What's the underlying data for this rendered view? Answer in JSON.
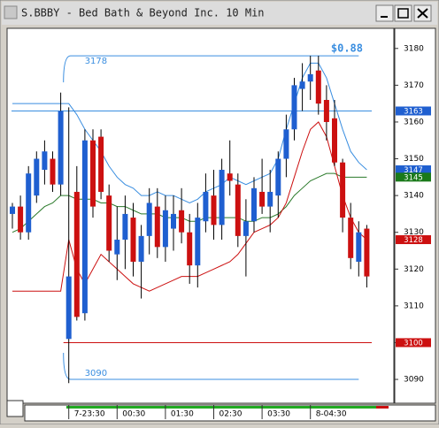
{
  "chart_data": {
    "type": "candlestick",
    "title": "S.BBBY - Bed Bath & Beyond Inc. 10 Min",
    "annotation": "$0.88",
    "categories": [
      null,
      null,
      null,
      null,
      null,
      null,
      null,
      "7-23:30",
      null,
      null,
      null,
      null,
      null,
      "00:30",
      null,
      null,
      null,
      null,
      null,
      "01:30",
      null,
      null,
      null,
      null,
      null,
      "02:30",
      null,
      null,
      null,
      null,
      null,
      "03:30",
      null,
      null,
      null,
      null,
      null,
      "8-04:30",
      null,
      null,
      null,
      null,
      null,
      null,
      null
    ],
    "open": [
      3135,
      3137,
      3130,
      3140,
      3147,
      3150,
      3143,
      3101,
      3141,
      3108,
      3155,
      3156,
      3140,
      3124,
      3128,
      3134,
      3122,
      3129,
      3137,
      3126,
      3131,
      3136,
      3130,
      3121,
      3133,
      3140,
      3132,
      3146,
      3143,
      3129,
      3133,
      3141,
      3137,
      3140,
      3150,
      3158,
      3169,
      3171,
      3174,
      3166,
      3161,
      3149,
      3134,
      3122,
      3131
    ],
    "high": [
      3138,
      3140,
      3148,
      3152,
      3155,
      3152,
      3168,
      3164,
      3148,
      3158,
      3158,
      3158,
      3143,
      3137,
      3140,
      3138,
      3132,
      3142,
      3142,
      3140,
      3140,
      3142,
      3135,
      3138,
      3146,
      3147,
      3150,
      3155,
      3146,
      3139,
      3145,
      3150,
      3147,
      3152,
      3162,
      3172,
      3176,
      3178,
      3178,
      3170,
      3166,
      3150,
      3138,
      3133,
      3132
    ],
    "low": [
      3131,
      3128,
      3128,
      3138,
      3143,
      3141,
      3140,
      3089,
      3106,
      3106,
      3134,
      3139,
      3122,
      3117,
      3120,
      3118,
      3112,
      3124,
      3123,
      3122,
      3125,
      3127,
      3116,
      3115,
      3130,
      3128,
      3128,
      3140,
      3126,
      3118,
      3130,
      3135,
      3130,
      3134,
      3145,
      3155,
      3163,
      3166,
      3162,
      3155,
      3148,
      3130,
      3120,
      3118,
      3115
    ],
    "close": [
      3137,
      3130,
      3146,
      3150,
      3152,
      3143,
      3163,
      3118,
      3107,
      3155,
      3137,
      3141,
      3125,
      3128,
      3135,
      3122,
      3129,
      3138,
      3126,
      3136,
      3135,
      3130,
      3121,
      3134,
      3141,
      3132,
      3147,
      3144,
      3129,
      3133,
      3142,
      3137,
      3141,
      3150,
      3158,
      3170,
      3171,
      3173,
      3165,
      3160,
      3149,
      3134,
      3123,
      3130,
      3118
    ],
    "up_color": "#1f5fd0",
    "down_color": "#cc1010",
    "lines": [
      {
        "color": "#3a8ee0",
        "values": [
          3165,
          3165,
          3165,
          3165,
          3165,
          3165,
          3165,
          3165,
          3162,
          3158,
          3155,
          3152,
          3148,
          3145,
          3143,
          3142,
          3140,
          3140,
          3141,
          3140,
          3140,
          3139,
          3138,
          3139,
          3141,
          3142,
          3143,
          3145,
          3144,
          3143,
          3144,
          3145,
          3146,
          3150,
          3158,
          3165,
          3172,
          3176,
          3176,
          3172,
          3165,
          3158,
          3152,
          3149,
          3147
        ]
      },
      {
        "color": "#2a7a2a",
        "values": [
          3130,
          3131,
          3133,
          3135,
          3137,
          3138,
          3140,
          3140,
          3139,
          3139,
          3139,
          3138,
          3138,
          3137,
          3137,
          3136,
          3135,
          3135,
          3135,
          3134,
          3134,
          3134,
          3133,
          3133,
          3134,
          3134,
          3134,
          3134,
          3134,
          3133,
          3133,
          3134,
          3134,
          3135,
          3137,
          3140,
          3142,
          3144,
          3145,
          3146,
          3146,
          3145,
          3145,
          3145,
          3145
        ]
      },
      {
        "color": "#cc1010",
        "values": [
          3114,
          3114,
          3114,
          3114,
          3114,
          3114,
          3114,
          3128,
          3120,
          3116,
          3120,
          3124,
          3122,
          3120,
          3118,
          3116,
          3115,
          3114,
          3115,
          3116,
          3117,
          3118,
          3118,
          3118,
          3119,
          3120,
          3121,
          3122,
          3124,
          3127,
          3130,
          3131,
          3132,
          3134,
          3138,
          3145,
          3152,
          3158,
          3160,
          3156,
          3148,
          3140,
          3134,
          3130,
          3128
        ]
      }
    ],
    "levels": [
      {
        "value": 3163,
        "color": "#3a8ee0"
      },
      {
        "value": 3100,
        "color": "#cc1010"
      }
    ],
    "range": {
      "high": 3178,
      "low": 3090,
      "color": "#3a8ee0"
    },
    "price_markers": [
      {
        "value": 3163,
        "color": "#1f5fd0"
      },
      {
        "value": 3147,
        "color": "#1f5fd0"
      },
      {
        "value": 3145,
        "color": "#1a7a1a"
      },
      {
        "value": 3128,
        "color": "#cc1010"
      },
      {
        "value": 3100,
        "color": "#cc1010"
      }
    ],
    "ylim": [
      3084,
      3185
    ],
    "yticks": [
      3090,
      3100,
      3110,
      3120,
      3130,
      3140,
      3150,
      3160,
      3170,
      3180
    ]
  }
}
